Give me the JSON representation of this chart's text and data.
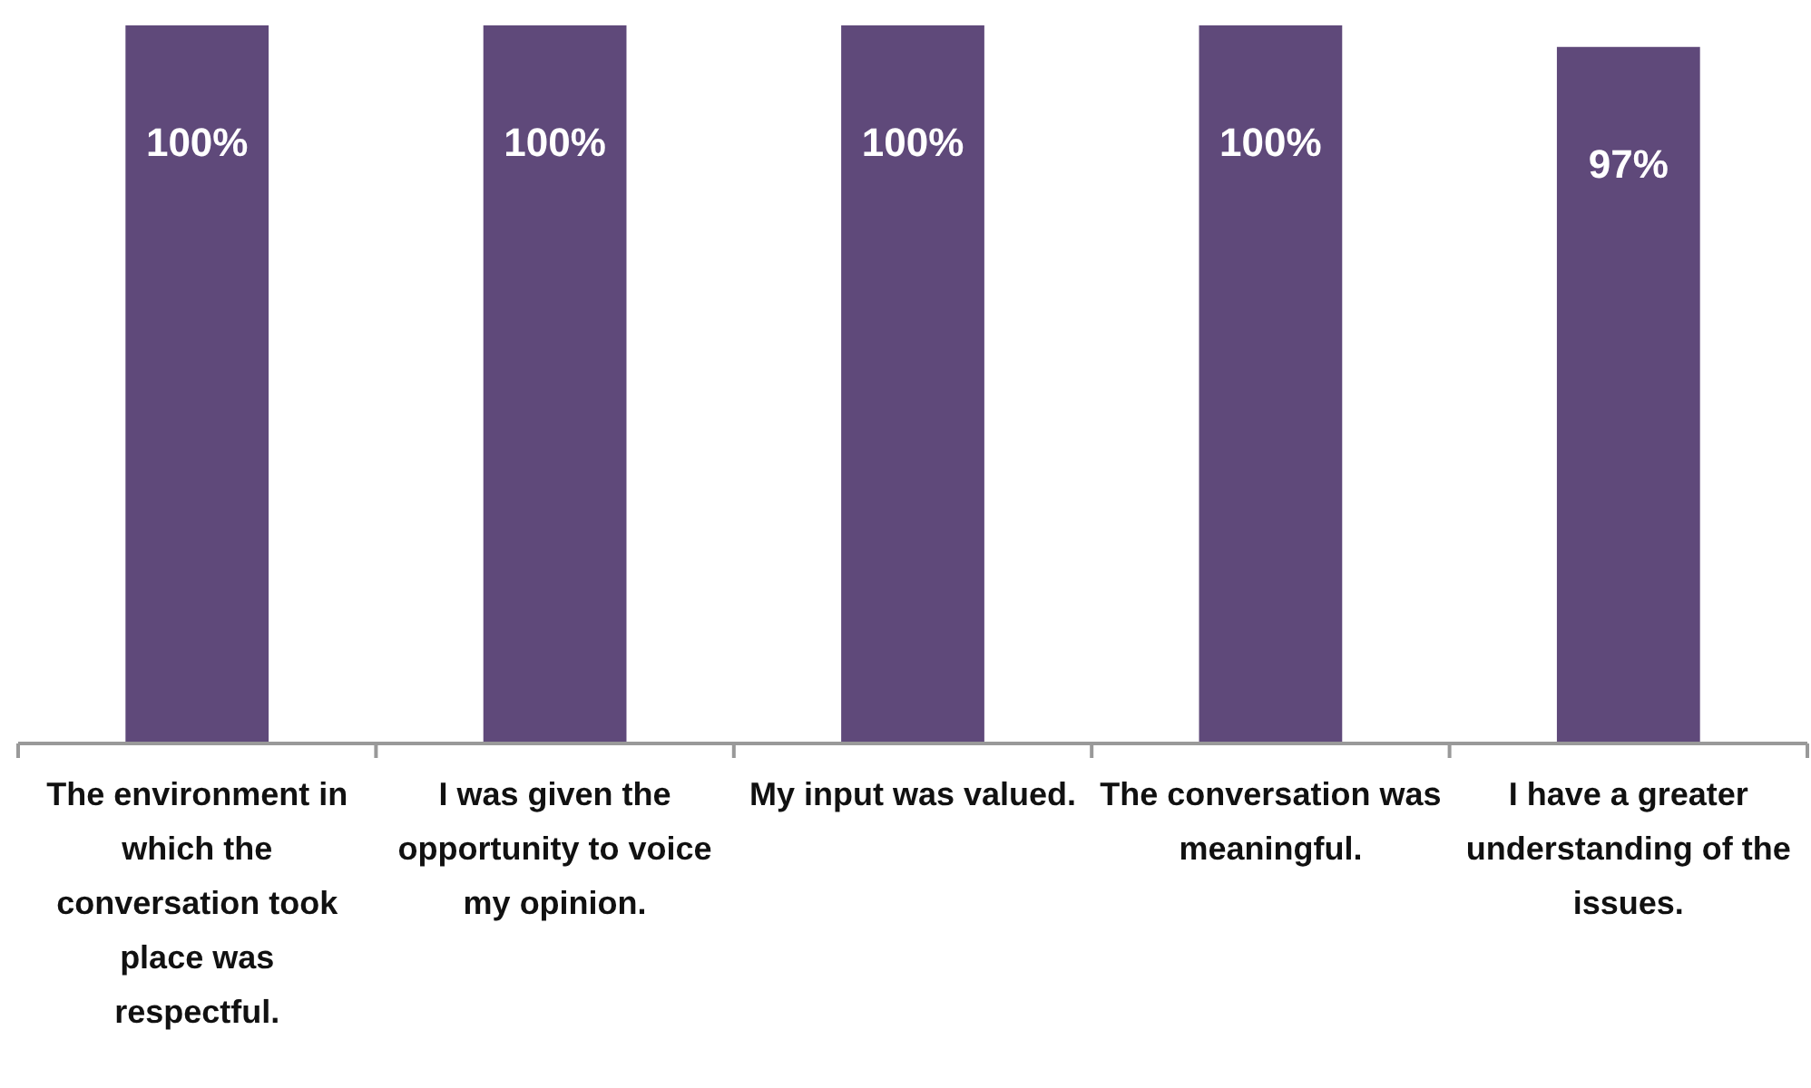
{
  "chart_data": {
    "type": "bar",
    "categories": [
      "The environment in which the conversation took place was respectful.",
      "I was given the opportunity to voice my opinion.",
      "My input was valued.",
      "The conversation was meaningful.",
      "I have a greater understanding of the issues."
    ],
    "values": [
      100,
      100,
      100,
      100,
      97
    ],
    "value_labels": [
      "100%",
      "100%",
      "100%",
      "100%",
      "97%"
    ],
    "color": "#5f497a",
    "ylim": [
      0,
      100
    ],
    "tick_labels": "x"
  }
}
